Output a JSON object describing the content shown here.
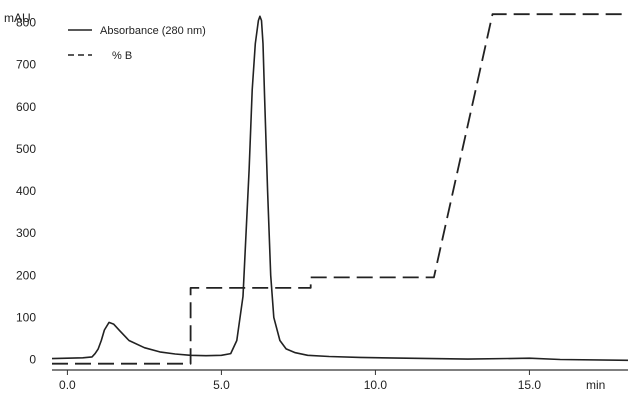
{
  "chart_data": {
    "type": "line",
    "y_unit": "mAU",
    "x_unit": "min",
    "xlim": [
      -0.5,
      18.2
    ],
    "ylim": [
      -25,
      830
    ],
    "x_ticks": [
      {
        "value": 0,
        "label": "0.0"
      },
      {
        "value": 5,
        "label": "5.0"
      },
      {
        "value": 10,
        "label": "10.0"
      },
      {
        "value": 15,
        "label": "15.0"
      }
    ],
    "y_ticks": [
      {
        "value": 0,
        "label": "0"
      },
      {
        "value": 100,
        "label": "100"
      },
      {
        "value": 200,
        "label": "200"
      },
      {
        "value": 300,
        "label": "300"
      },
      {
        "value": 400,
        "label": "400"
      },
      {
        "value": 500,
        "label": "500"
      },
      {
        "value": 600,
        "label": "600"
      },
      {
        "value": 700,
        "label": "700"
      },
      {
        "value": 800,
        "label": "800"
      }
    ],
    "legend_position": "top-left",
    "grid": false,
    "series": [
      {
        "name": "Absorbance (280 nm)",
        "style": "solid",
        "color": "#222222",
        "x": [
          -0.5,
          0.5,
          0.8,
          0.9,
          1.0,
          1.1,
          1.2,
          1.35,
          1.5,
          1.7,
          2.0,
          2.5,
          3.0,
          3.5,
          4.0,
          4.5,
          5.0,
          5.3,
          5.5,
          5.7,
          5.9,
          6.0,
          6.1,
          6.2,
          6.25,
          6.3,
          6.35,
          6.4,
          6.5,
          6.6,
          6.7,
          6.9,
          7.1,
          7.4,
          7.8,
          8.5,
          9.5,
          11.0,
          13.0,
          15.0,
          16.0,
          18.2
        ],
        "y": [
          2,
          4,
          6,
          14,
          25,
          45,
          70,
          88,
          84,
          68,
          45,
          28,
          18,
          13,
          10,
          9,
          10,
          14,
          45,
          150,
          450,
          640,
          750,
          805,
          815,
          805,
          750,
          630,
          400,
          200,
          100,
          45,
          25,
          16,
          10,
          7,
          5,
          3,
          1,
          3,
          0,
          -2
        ]
      },
      {
        "name": "% B",
        "style": "dashed",
        "color": "#222222",
        "x": [
          -0.5,
          4.0,
          4.0,
          7.9,
          7.9,
          11.9,
          13.8,
          18.2
        ],
        "y": [
          -10,
          -10,
          170,
          170,
          195,
          195,
          820,
          820
        ]
      }
    ]
  }
}
